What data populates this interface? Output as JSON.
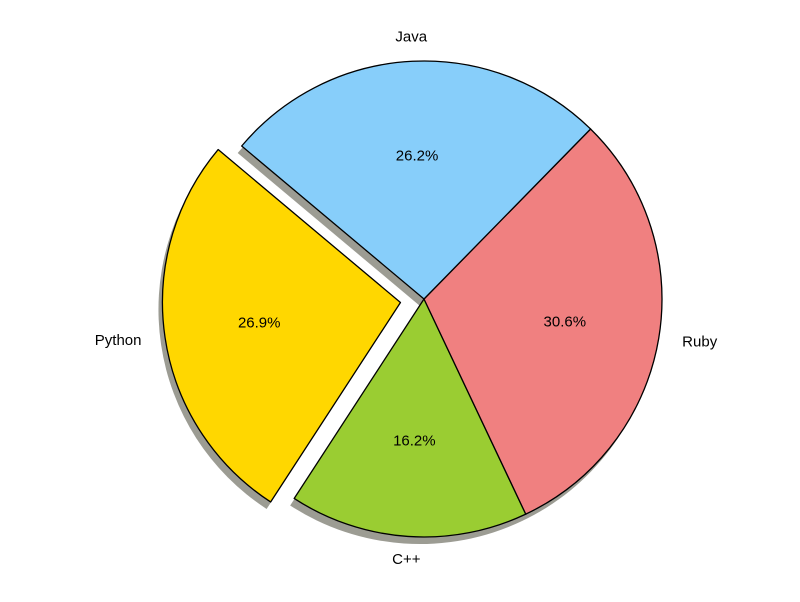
{
  "chart_data": {
    "type": "pie",
    "title": "",
    "categories": [
      "Python",
      "C++",
      "Ruby",
      "Java"
    ],
    "values": [
      26.9,
      16.2,
      30.6,
      26.2
    ],
    "value_labels": [
      "26.9%",
      "16.2%",
      "30.6%",
      "26.2%"
    ],
    "colors": [
      "#FFD700",
      "#9ACD32",
      "#F08080",
      "#87CEFA"
    ],
    "explode": [
      0.1,
      0,
      0,
      0
    ],
    "shadow": true,
    "start_angle_deg": 140,
    "direction": "counterclockwise",
    "legend": "none"
  }
}
